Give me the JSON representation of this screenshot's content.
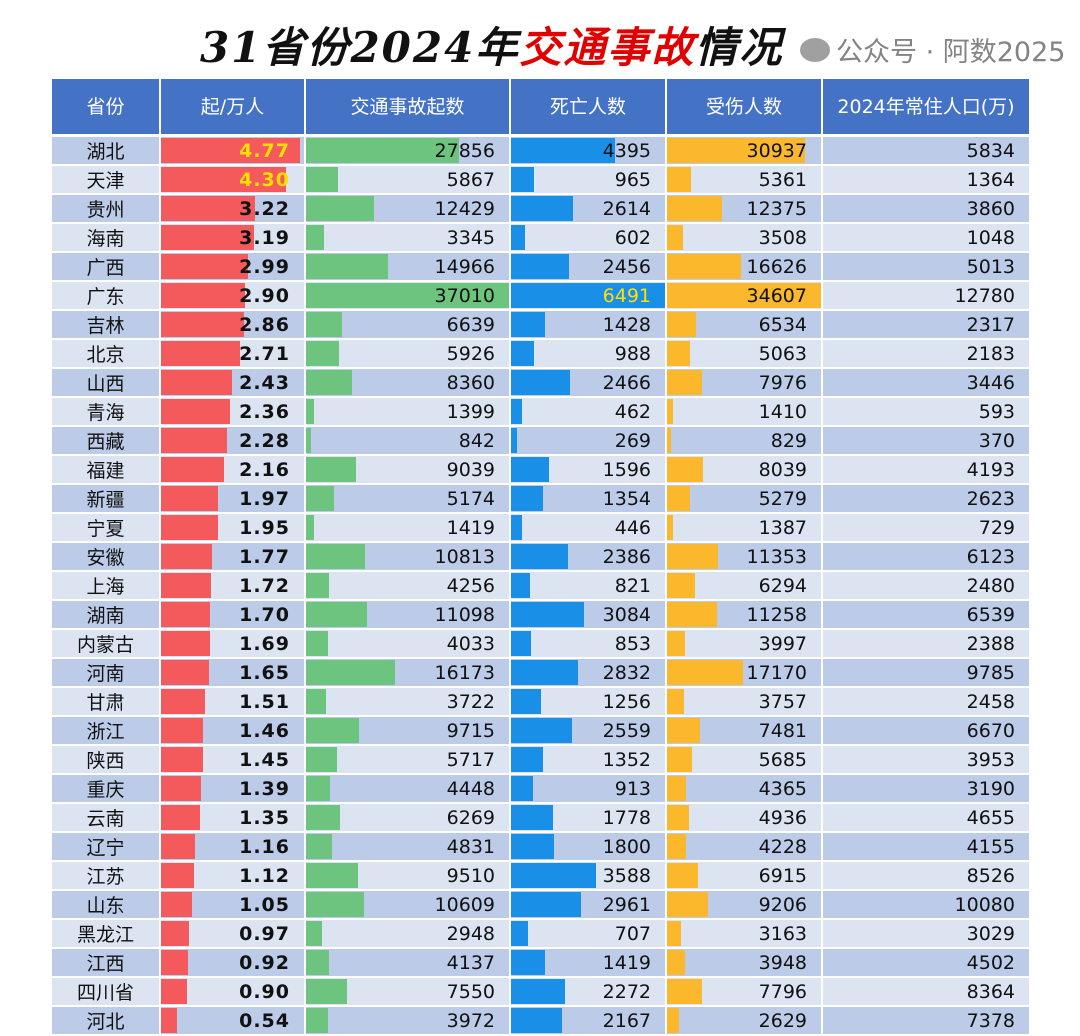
{
  "title": {
    "part1": "31省份2024年",
    "part2": "交通事故",
    "part3": "情况"
  },
  "watermark": "公众号 · 阿数2025",
  "colors": {
    "header": "#4472c4",
    "rate_bar": "#f4595b",
    "accidents_bar": "#6cc47f",
    "deaths_bar": "#1a8fe8",
    "injuries_bar": "#fbb82c",
    "highlight_text": "#ffe000"
  },
  "chart_data": {
    "type": "table",
    "title": "31省份2024年交通事故情况",
    "columns": [
      "省份",
      "起/万人",
      "交通事故起数",
      "死亡人数",
      "受伤人数",
      "2024年常住人口(万)"
    ],
    "rows": [
      [
        "湖北",
        "4.77",
        27856,
        4395,
        30937,
        5834
      ],
      [
        "天津",
        "4.30",
        5867,
        965,
        5361,
        1364
      ],
      [
        "贵州",
        "3.22",
        12429,
        2614,
        12375,
        3860
      ],
      [
        "海南",
        "3.19",
        3345,
        602,
        3508,
        1048
      ],
      [
        "广西",
        "2.99",
        14966,
        2456,
        16626,
        5013
      ],
      [
        "广东",
        "2.90",
        37010,
        6491,
        34607,
        12780
      ],
      [
        "吉林",
        "2.86",
        6639,
        1428,
        6534,
        2317
      ],
      [
        "北京",
        "2.71",
        5926,
        988,
        5063,
        2183
      ],
      [
        "山西",
        "2.43",
        8360,
        2466,
        7976,
        3446
      ],
      [
        "青海",
        "2.36",
        1399,
        462,
        1410,
        593
      ],
      [
        "西藏",
        "2.28",
        842,
        269,
        829,
        370
      ],
      [
        "福建",
        "2.16",
        9039,
        1596,
        8039,
        4193
      ],
      [
        "新疆",
        "1.97",
        5174,
        1354,
        5279,
        2623
      ],
      [
        "宁夏",
        "1.95",
        1419,
        446,
        1387,
        729
      ],
      [
        "安徽",
        "1.77",
        10813,
        2386,
        11353,
        6123
      ],
      [
        "上海",
        "1.72",
        4256,
        821,
        6294,
        2480
      ],
      [
        "湖南",
        "1.70",
        11098,
        3084,
        11258,
        6539
      ],
      [
        "内蒙古",
        "1.69",
        4033,
        853,
        3997,
        2388
      ],
      [
        "河南",
        "1.65",
        16173,
        2832,
        17170,
        9785
      ],
      [
        "甘肃",
        "1.51",
        3722,
        1256,
        3757,
        2458
      ],
      [
        "浙江",
        "1.46",
        9715,
        2559,
        7481,
        6670
      ],
      [
        "陕西",
        "1.45",
        5717,
        1352,
        5685,
        3953
      ],
      [
        "重庆",
        "1.39",
        4448,
        913,
        4365,
        3190
      ],
      [
        "云南",
        "1.35",
        6269,
        1778,
        4936,
        4655
      ],
      [
        "辽宁",
        "1.16",
        4831,
        1800,
        4228,
        4155
      ],
      [
        "江苏",
        "1.12",
        9510,
        3588,
        6915,
        8526
      ],
      [
        "山东",
        "1.05",
        10609,
        2961,
        9206,
        10080
      ],
      [
        "黑龙江",
        "0.97",
        2948,
        707,
        3163,
        3029
      ],
      [
        "江西",
        "0.92",
        4137,
        1419,
        3948,
        4502
      ],
      [
        "四川省",
        "0.90",
        7550,
        2272,
        7796,
        8364
      ],
      [
        "河北",
        "0.54",
        3972,
        2167,
        2629,
        7378
      ]
    ],
    "highlighted_cells": [
      [
        0,
        1
      ],
      [
        1,
        1
      ],
      [
        5,
        3
      ]
    ]
  }
}
